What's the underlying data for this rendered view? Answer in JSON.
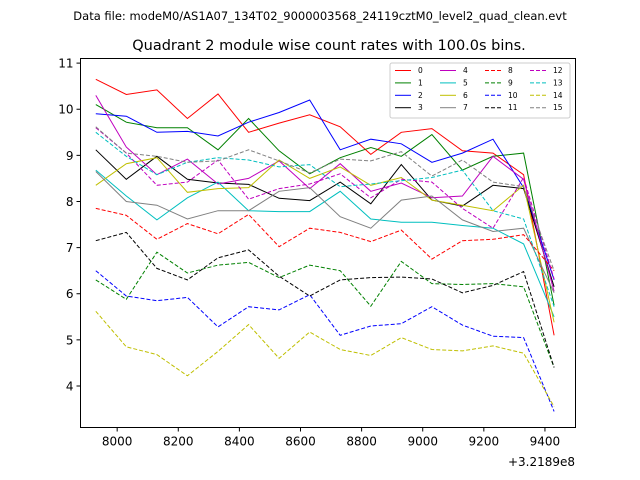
{
  "chart_data": {
    "type": "line",
    "suptitle": "Data file: modeM0/AS1A07_134T02_9000003568_24119cztM0_level2_quad_clean.evt",
    "title": "Quadrant 2 module wise count rates with 100.0s bins.",
    "xlabel": "",
    "ylabel": "",
    "x_offset_label": "+3.2189e8",
    "xlim": [
      7880,
      9500
    ],
    "ylim": [
      3.1,
      11.1
    ],
    "x_ticks": [
      8000,
      8200,
      8400,
      8600,
      8800,
      9000,
      9200,
      9400
    ],
    "x_tick_labels": [
      "8000",
      "8200",
      "8400",
      "8600",
      "8800",
      "9000",
      "9200",
      "9400"
    ],
    "y_ticks": [
      4,
      5,
      6,
      7,
      8,
      9,
      10,
      11
    ],
    "y_tick_labels": [
      "4",
      "5",
      "6",
      "7",
      "8",
      "9",
      "10",
      "11"
    ],
    "x": [
      7930,
      8030,
      8130,
      8230,
      8330,
      8430,
      8530,
      8630,
      8730,
      8830,
      8930,
      9030,
      9130,
      9230,
      9330,
      9430
    ],
    "legend_location": "top-right",
    "series": [
      {
        "name": "0",
        "color": "#ff0000",
        "dash": "solid",
        "values": [
          10.65,
          10.32,
          10.42,
          9.8,
          10.33,
          9.5,
          9.7,
          9.88,
          9.62,
          9.02,
          9.5,
          9.58,
          9.1,
          9.05,
          8.58,
          5.1
        ]
      },
      {
        "name": "1",
        "color": "#008000",
        "dash": "solid",
        "values": [
          10.1,
          9.72,
          9.6,
          9.6,
          9.12,
          9.8,
          9.1,
          8.6,
          8.95,
          9.17,
          8.98,
          9.45,
          8.68,
          8.98,
          9.05,
          5.75
        ]
      },
      {
        "name": "2",
        "color": "#0000ff",
        "dash": "solid",
        "values": [
          9.9,
          9.85,
          9.5,
          9.52,
          9.42,
          9.72,
          9.93,
          10.2,
          9.12,
          9.35,
          9.25,
          8.85,
          9.05,
          9.35,
          8.3,
          6.3
        ]
      },
      {
        "name": "3",
        "color": "#000000",
        "dash": "solid",
        "values": [
          9.12,
          8.48,
          8.98,
          8.48,
          8.4,
          8.37,
          8.07,
          8.02,
          8.42,
          7.95,
          8.8,
          8.03,
          7.9,
          8.35,
          8.28,
          6.15
        ]
      },
      {
        "name": "4",
        "color": "#bf00bf",
        "dash": "solid",
        "values": [
          10.3,
          9.18,
          8.58,
          8.92,
          8.38,
          8.5,
          8.88,
          8.28,
          8.82,
          8.22,
          8.4,
          8.08,
          8.12,
          8.98,
          8.48,
          6.05
        ]
      },
      {
        "name": "5",
        "color": "#00bfbf",
        "dash": "solid",
        "values": [
          8.68,
          8.12,
          7.6,
          8.08,
          8.42,
          7.8,
          7.78,
          7.78,
          8.22,
          7.62,
          7.55,
          7.55,
          7.48,
          7.42,
          7.08,
          5.5
        ]
      },
      {
        "name": "6",
        "color": "#bfbf00",
        "dash": "solid",
        "values": [
          8.35,
          8.82,
          8.95,
          8.2,
          8.28,
          8.3,
          8.9,
          8.5,
          8.75,
          8.35,
          8.52,
          8.03,
          7.92,
          7.8,
          8.35,
          5.38
        ]
      },
      {
        "name": "7",
        "color": "#808080",
        "dash": "solid",
        "values": [
          8.65,
          8.0,
          7.92,
          7.62,
          7.8,
          7.8,
          8.22,
          8.3,
          7.67,
          7.42,
          8.03,
          8.12,
          7.6,
          7.35,
          7.42,
          6.02
        ]
      },
      {
        "name": "8",
        "color": "#ff0000",
        "dash": "dashed",
        "values": [
          7.85,
          7.7,
          7.18,
          7.52,
          7.3,
          7.72,
          7.02,
          7.42,
          7.33,
          7.13,
          7.38,
          6.75,
          7.15,
          7.18,
          7.28,
          6.5
        ]
      },
      {
        "name": "9",
        "color": "#008000",
        "dash": "dashed",
        "values": [
          6.3,
          5.88,
          6.9,
          6.45,
          6.62,
          6.68,
          6.35,
          6.62,
          6.5,
          5.73,
          6.7,
          6.22,
          6.2,
          6.22,
          6.15,
          4.4
        ]
      },
      {
        "name": "10",
        "color": "#0000ff",
        "dash": "dashed",
        "values": [
          6.5,
          5.95,
          5.85,
          5.92,
          5.28,
          5.72,
          5.65,
          5.98,
          5.1,
          5.3,
          5.35,
          5.72,
          5.32,
          5.08,
          5.05,
          3.45
        ]
      },
      {
        "name": "11",
        "color": "#000000",
        "dash": "dashed",
        "values": [
          7.15,
          7.33,
          6.55,
          6.3,
          6.78,
          6.95,
          6.38,
          5.95,
          6.3,
          6.35,
          6.36,
          6.32,
          6.02,
          6.18,
          6.48,
          4.4
        ]
      },
      {
        "name": "12",
        "color": "#bf00bf",
        "dash": "dashed",
        "values": [
          9.6,
          9.05,
          8.35,
          8.42,
          8.9,
          8.05,
          8.28,
          8.38,
          8.6,
          8.08,
          8.48,
          8.42,
          7.85,
          7.42,
          8.52,
          6.32
        ]
      },
      {
        "name": "13",
        "color": "#00bfbf",
        "dash": "dashed",
        "values": [
          9.5,
          8.98,
          8.58,
          8.85,
          8.95,
          8.9,
          8.75,
          8.8,
          8.32,
          8.38,
          8.45,
          8.52,
          8.68,
          7.8,
          7.62,
          5.72
        ]
      },
      {
        "name": "14",
        "color": "#bfbf00",
        "dash": "dashed",
        "values": [
          5.62,
          4.85,
          4.68,
          4.22,
          4.75,
          5.33,
          4.6,
          5.17,
          4.79,
          4.66,
          5.05,
          4.79,
          4.76,
          4.87,
          4.71,
          3.55
        ]
      },
      {
        "name": "15",
        "color": "#808080",
        "dash": "dashed",
        "values": [
          9.62,
          9.05,
          8.98,
          8.85,
          8.88,
          9.12,
          8.88,
          8.62,
          8.92,
          8.88,
          9.08,
          8.55,
          8.9,
          8.42,
          8.32,
          6.5
        ]
      }
    ]
  }
}
